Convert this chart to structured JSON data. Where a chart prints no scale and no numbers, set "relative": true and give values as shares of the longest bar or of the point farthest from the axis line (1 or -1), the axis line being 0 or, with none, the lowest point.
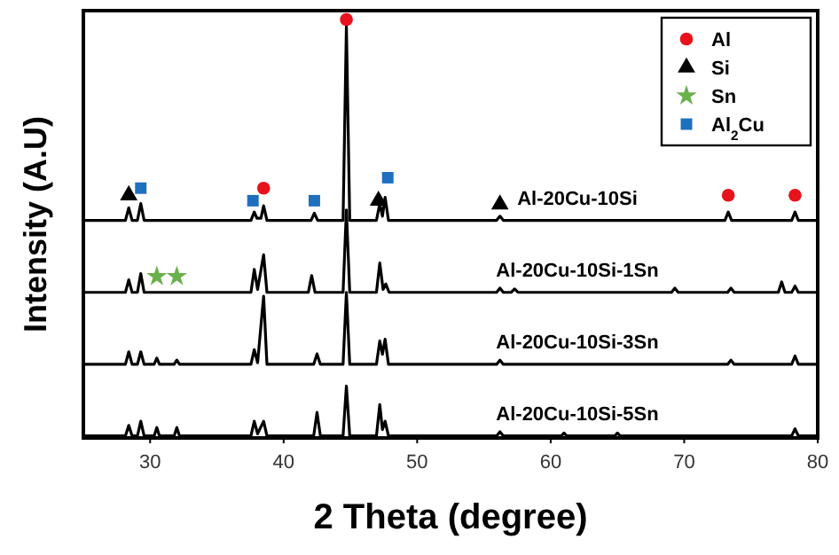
{
  "chart_data": {
    "type": "line",
    "relative": true,
    "xlabel": "2 Theta (degree)",
    "ylabel": "Intensity (A.U)",
    "xlim": [
      25,
      80
    ],
    "xticks": [
      30,
      40,
      50,
      60,
      70,
      80
    ],
    "legend": "top right",
    "grid": false,
    "series": [
      {
        "name": "Al-20Cu-10Si",
        "color": "#000000",
        "x": [
          25,
          28.15,
          28.4,
          28.65,
          29.05,
          29.3,
          29.55,
          37.55,
          37.8,
          38.0,
          38.3,
          38.5,
          38.75,
          42.05,
          42.3,
          42.55,
          44.45,
          44.7,
          44.95,
          46.95,
          47.2,
          47.4,
          47.6,
          47.85,
          55.95,
          56.2,
          56.45,
          73.05,
          73.3,
          73.55,
          78.05,
          78.3,
          78.55,
          80
        ],
        "values": [
          0.52,
          0.52,
          0.55,
          0.52,
          0.52,
          0.56,
          0.52,
          0.52,
          0.54,
          0.525,
          0.525,
          0.555,
          0.52,
          0.52,
          0.537,
          0.52,
          0.52,
          0.985,
          0.52,
          0.52,
          0.56,
          0.53,
          0.575,
          0.52,
          0.52,
          0.53,
          0.52,
          0.52,
          0.54,
          0.52,
          0.52,
          0.54,
          0.52,
          0.52
        ]
      },
      {
        "name": "Al-20Cu-10Si-1Sn",
        "color": "#000000",
        "x": [
          25,
          28.15,
          28.4,
          28.65,
          29.05,
          29.3,
          29.55,
          37.55,
          37.8,
          38.05,
          38.5,
          38.75,
          41.85,
          42.1,
          42.35,
          44.45,
          44.7,
          44.95,
          46.95,
          47.2,
          47.45,
          47.65,
          47.9,
          55.95,
          56.2,
          56.45,
          57.05,
          57.3,
          57.55,
          69.05,
          69.3,
          69.55,
          73.25,
          73.5,
          73.75,
          77.05,
          77.3,
          77.55,
          78.05,
          78.3,
          78.55,
          80
        ],
        "values": [
          0.348,
          0.348,
          0.378,
          0.348,
          0.348,
          0.393,
          0.348,
          0.348,
          0.403,
          0.355,
          0.438,
          0.348,
          0.348,
          0.388,
          0.348,
          0.348,
          0.545,
          0.348,
          0.348,
          0.418,
          0.355,
          0.368,
          0.348,
          0.348,
          0.358,
          0.348,
          0.348,
          0.356,
          0.348,
          0.348,
          0.358,
          0.348,
          0.348,
          0.358,
          0.348,
          0.348,
          0.373,
          0.348,
          0.348,
          0.363,
          0.348,
          0.348
        ]
      },
      {
        "name": "Al-20Cu-10Si-3Sn",
        "color": "#000000",
        "x": [
          25,
          28.15,
          28.4,
          28.65,
          29.05,
          29.3,
          29.55,
          30.3,
          30.5,
          30.7,
          31.8,
          32,
          32.2,
          37.55,
          37.8,
          38.05,
          38.5,
          38.75,
          42.25,
          42.5,
          42.75,
          44.45,
          44.7,
          44.95,
          46.95,
          47.2,
          47.4,
          47.6,
          47.85,
          55.95,
          56.2,
          56.45,
          73.25,
          73.5,
          73.75,
          78.05,
          78.3,
          78.55,
          80
        ],
        "values": [
          0.176,
          0.176,
          0.206,
          0.176,
          0.176,
          0.206,
          0.176,
          0.176,
          0.191,
          0.176,
          0.176,
          0.186,
          0.176,
          0.176,
          0.211,
          0.18,
          0.339,
          0.176,
          0.176,
          0.201,
          0.176,
          0.176,
          0.348,
          0.176,
          0.176,
          0.232,
          0.2,
          0.236,
          0.176,
          0.176,
          0.186,
          0.176,
          0.176,
          0.186,
          0.176,
          0.176,
          0.196,
          0.176,
          0.176
        ]
      },
      {
        "name": "Al-20Cu-10Si-5Sn",
        "color": "#000000",
        "x": [
          25,
          28.15,
          28.4,
          28.65,
          29.05,
          29.3,
          29.55,
          30.3,
          30.5,
          30.7,
          31.8,
          32,
          32.2,
          37.55,
          37.8,
          38.05,
          38.5,
          38.75,
          42.25,
          42.5,
          42.75,
          44.45,
          44.7,
          44.95,
          46.95,
          47.2,
          47.4,
          47.6,
          47.85,
          55.95,
          56.2,
          56.45,
          60.8,
          61,
          61.2,
          64.8,
          65,
          65.2,
          78.05,
          78.3,
          78.55,
          80
        ],
        "values": [
          0.005,
          0.005,
          0.03,
          0.005,
          0.005,
          0.04,
          0.005,
          0.005,
          0.025,
          0.005,
          0.005,
          0.025,
          0.005,
          0.005,
          0.04,
          0.01,
          0.04,
          0.005,
          0.005,
          0.061,
          0.005,
          0.005,
          0.124,
          0.005,
          0.005,
          0.08,
          0.02,
          0.04,
          0.005,
          0.005,
          0.015,
          0.005,
          0.005,
          0.012,
          0.005,
          0.005,
          0.012,
          0.005,
          0.005,
          0.022,
          0.005,
          0.005
        ]
      },
      {
        "name": "Al",
        "type": "scatter",
        "marker": "circle",
        "color": "#e8121c",
        "x": [
          38.5,
          44.7,
          73.3,
          78.3
        ],
        "values": [
          0.597,
          1,
          0.58,
          0.58
        ]
      },
      {
        "name": "Si",
        "type": "scatter",
        "marker": "triangle",
        "color": "#000000",
        "x": [
          28.4,
          47.1,
          56.2
        ],
        "values": [
          0.58,
          0.567,
          0.558
        ]
      },
      {
        "name": "Sn",
        "type": "scatter",
        "marker": "star",
        "color": "#6ab04c",
        "x": [
          30.5,
          32
        ],
        "values": [
          0.386,
          0.386
        ]
      },
      {
        "name": "Al$_{2}$Cu",
        "type": "scatter",
        "marker": "square",
        "color": "#1f6fbf",
        "x": [
          29.3,
          37.7,
          42.3,
          47.8
        ],
        "values": [
          0.597,
          0.567,
          0.567,
          0.622
        ]
      }
    ]
  }
}
